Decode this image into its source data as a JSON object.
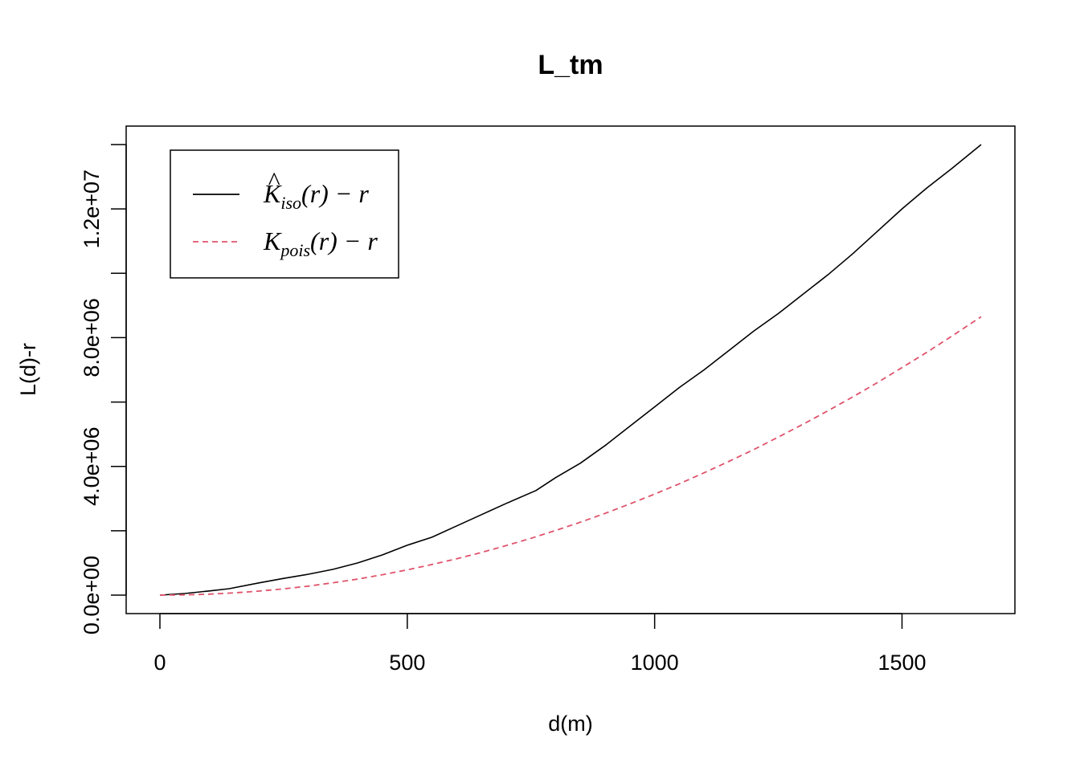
{
  "chart_data": {
    "type": "line",
    "title": "L_tm",
    "xlabel": "d(m)",
    "ylabel": "L(d)-r",
    "xlim": [
      0,
      1660
    ],
    "ylim": [
      0,
      14000000
    ],
    "x_ticks": [
      0,
      500,
      1000,
      1500
    ],
    "x_tick_labels": [
      "0",
      "500",
      "1000",
      "1500"
    ],
    "y_ticks": [
      0,
      2000000,
      4000000,
      6000000,
      8000000,
      10000000,
      12000000,
      14000000
    ],
    "y_tick_labels": [
      "0.0e+00",
      "",
      "4.0e+06",
      "",
      "8.0e+06",
      "",
      "1.2e+07",
      ""
    ],
    "grid": false,
    "legend_position": "top-left",
    "series": [
      {
        "name": "K̂iso(r) − r",
        "label_main": "K",
        "label_hat": "^",
        "label_sub": "iso",
        "label_rest": "(r) − r",
        "color": "#000000",
        "style": "solid",
        "x": [
          0,
          50,
          100,
          140,
          200,
          250,
          300,
          350,
          400,
          450,
          500,
          550,
          600,
          650,
          700,
          760,
          800,
          850,
          900,
          950,
          1000,
          1050,
          1100,
          1150,
          1200,
          1250,
          1300,
          1350,
          1400,
          1450,
          1500,
          1550,
          1600,
          1660
        ],
        "y": [
          0,
          50000,
          130000,
          200000,
          380000,
          520000,
          650000,
          800000,
          1000000,
          1250000,
          1550000,
          1800000,
          2150000,
          2500000,
          2850000,
          3250000,
          3650000,
          4100000,
          4650000,
          5250000,
          5850000,
          6450000,
          7000000,
          7600000,
          8200000,
          8750000,
          9350000,
          9950000,
          10600000,
          11300000,
          12000000,
          12650000,
          13250000,
          14000000
        ]
      },
      {
        "name": "Kpois(r) − r",
        "label_main": "K",
        "label_hat": "",
        "label_sub": "pois",
        "label_rest": "(r) − r",
        "color": "#DF536B",
        "style": "dashed",
        "x": [
          0,
          50,
          100,
          150,
          200,
          250,
          300,
          350,
          400,
          450,
          500,
          550,
          600,
          650,
          700,
          750,
          800,
          850,
          900,
          950,
          1000,
          1050,
          1100,
          1150,
          1200,
          1250,
          1300,
          1350,
          1400,
          1450,
          1500,
          1550,
          1600,
          1660
        ],
        "y": [
          0,
          7800,
          31000,
          70000,
          125000,
          195000,
          280000,
          385000,
          500000,
          635000,
          785000,
          950000,
          1130000,
          1325000,
          1540000,
          1765000,
          2010000,
          2265000,
          2540000,
          2835000,
          3140000,
          3460000,
          3800000,
          4155000,
          4520000,
          4910000,
          5310000,
          5725000,
          6155000,
          6600000,
          7070000,
          7545000,
          8040000,
          8650000
        ]
      }
    ]
  }
}
